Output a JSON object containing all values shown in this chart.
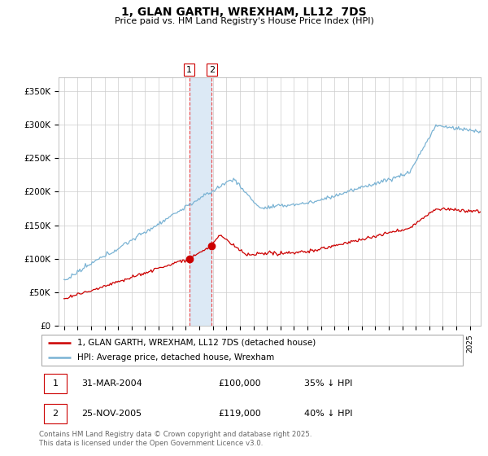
{
  "title": "1, GLAN GARTH, WREXHAM, LL12  7DS",
  "subtitle": "Price paid vs. HM Land Registry's House Price Index (HPI)",
  "ylabel_ticks": [
    "£0",
    "£50K",
    "£100K",
    "£150K",
    "£200K",
    "£250K",
    "£300K",
    "£350K"
  ],
  "ylim": [
    0,
    370000
  ],
  "ytick_vals": [
    0,
    50000,
    100000,
    150000,
    200000,
    250000,
    300000,
    350000
  ],
  "legend_entries": [
    "1, GLAN GARTH, WREXHAM, LL12 7DS (detached house)",
    "HPI: Average price, detached house, Wrexham"
  ],
  "transaction1": {
    "label": "1",
    "date": "31-MAR-2004",
    "price": "£100,000",
    "hpi": "35% ↓ HPI"
  },
  "transaction2": {
    "label": "2",
    "date": "25-NOV-2005",
    "price": "£119,000",
    "hpi": "40% ↓ HPI"
  },
  "footnote": "Contains HM Land Registry data © Crown copyright and database right 2025.\nThis data is licensed under the Open Government Licence v3.0.",
  "hpi_color": "#7ab3d4",
  "price_color": "#cc0000",
  "shading_color": "#dce9f5",
  "vline_color": "#ee4444",
  "background_color": "#ffffff",
  "grid_color": "#cccccc",
  "t1_year": 2004.25,
  "t2_year": 2005.917,
  "t1_price": 100000,
  "t2_price": 119000
}
